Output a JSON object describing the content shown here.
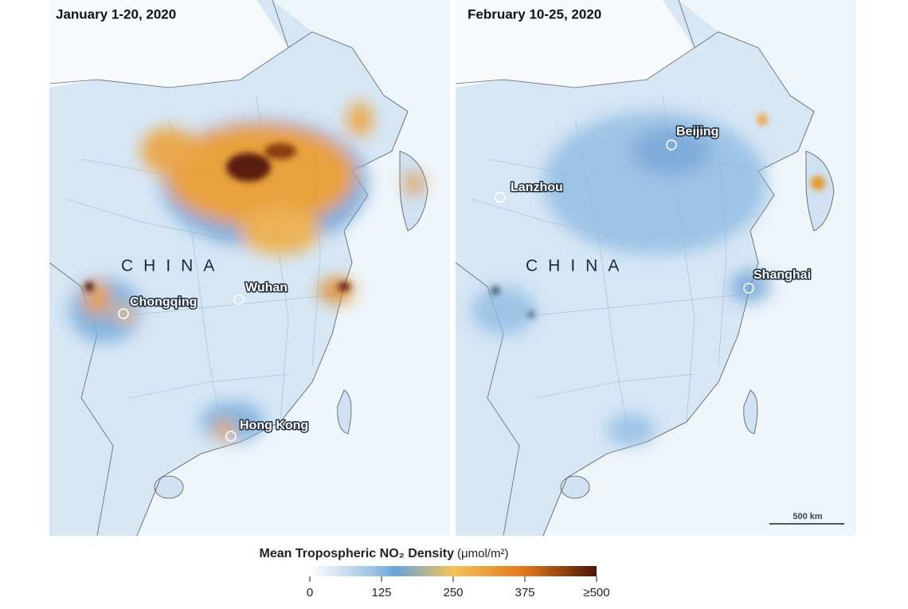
{
  "panels": [
    {
      "title": "January 1-20, 2020",
      "country": "CHINA",
      "cities": [
        {
          "name": "Chongqing"
        },
        {
          "name": "Wuhan"
        },
        {
          "name": "Hong Kong"
        }
      ]
    },
    {
      "title": "February 10-25, 2020",
      "country": "CHINA",
      "cities": [
        {
          "name": "Beijing"
        },
        {
          "name": "Lanzhou"
        },
        {
          "name": "Shanghai"
        }
      ],
      "scale_bar": "500 km"
    }
  ],
  "legend": {
    "title": "Mean Tropospheric NO₂ Density",
    "units": "(μmol/m²)",
    "lim": [
      0,
      500
    ],
    "ticks": [
      0,
      125,
      250,
      375,
      {
        "value": 500,
        "label": "≥500"
      }
    ]
  }
}
